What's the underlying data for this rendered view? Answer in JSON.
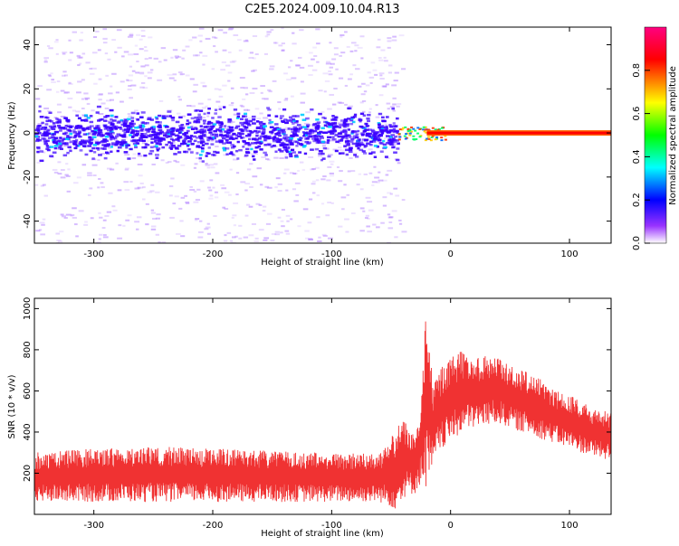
{
  "title": "C2E5.2024.009.10.04.R13",
  "colors": {
    "snr_line": "#f03232",
    "spectrogram_noise": "#a56cff",
    "spectrogram_core": "#3a00ff",
    "carrier": "#ff0000"
  },
  "chart_data": [
    {
      "type": "heatmap",
      "title": "C2E5.2024.009.10.04.R13",
      "xlabel": "Height of straight line (km)",
      "ylabel": "Frequency (Hz)",
      "xlim": [
        -350,
        135
      ],
      "ylim": [
        -50,
        48
      ],
      "x_ticks": [
        -300,
        -200,
        -100,
        0,
        100
      ],
      "y_ticks": [
        -40,
        -20,
        0,
        20,
        40
      ],
      "colorbar": {
        "label": "Normalized spectral amplitude",
        "range": [
          0.0,
          1.0
        ],
        "ticks": [
          0.0,
          0.2,
          0.4,
          0.6,
          0.8
        ],
        "colormap": [
          "#ffffff",
          "#9933ff",
          "#0000ff",
          "#00ffff",
          "#00ff00",
          "#ffff00",
          "#ff0000",
          "#ff0080"
        ]
      },
      "features": [
        {
          "name": "noise band",
          "x_range": [
            -350,
            -45
          ],
          "freq_halfwidth": 6,
          "amplitude": 0.15
        },
        {
          "name": "sparse scatter",
          "x_range": [
            -350,
            -40
          ],
          "freq_range": [
            -50,
            48
          ],
          "amplitude": 0.05
        },
        {
          "name": "carrier",
          "x_range": [
            -20,
            135
          ],
          "freq": 0,
          "amplitude": 0.95
        }
      ]
    },
    {
      "type": "line",
      "xlabel": "Height of straight line (km)",
      "ylabel": "SNR (10 * v/v)",
      "xlim": [
        -350,
        135
      ],
      "ylim": [
        0,
        1050
      ],
      "x_ticks": [
        -300,
        -200,
        -100,
        0,
        100
      ],
      "y_ticks": [
        200,
        400,
        600,
        800,
        1000
      ],
      "envelope": {
        "x": [
          -350,
          -300,
          -250,
          -200,
          -150,
          -100,
          -60,
          -45,
          -40,
          -30,
          -25,
          -20,
          -15,
          -10,
          0,
          10,
          20,
          30,
          40,
          50,
          60,
          70,
          80,
          90,
          100,
          110,
          120,
          135
        ],
        "lower": [
          60,
          60,
          60,
          60,
          60,
          60,
          60,
          20,
          80,
          100,
          150,
          120,
          200,
          300,
          350,
          400,
          420,
          430,
          440,
          420,
          400,
          380,
          360,
          340,
          320,
          300,
          280,
          260
        ],
        "upper": [
          300,
          320,
          330,
          320,
          310,
          300,
          300,
          420,
          480,
          400,
          560,
          1050,
          650,
          700,
          760,
          800,
          760,
          780,
          780,
          720,
          700,
          680,
          640,
          600,
          580,
          550,
          520,
          500
        ]
      }
    }
  ]
}
